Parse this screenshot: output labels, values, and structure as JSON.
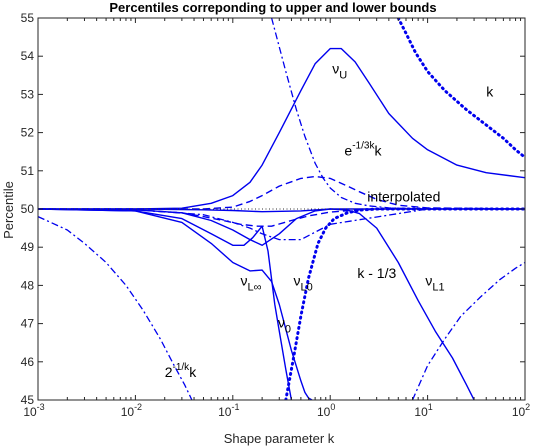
{
  "chart_data": {
    "type": "line",
    "title": "Percentiles correponding to upper and lower bounds",
    "xlabel": "Shape parameter k",
    "ylabel": "Percentile",
    "xscale": "log",
    "xlim": [
      0.001,
      100
    ],
    "ylim": [
      45,
      55
    ],
    "grid": false,
    "legend": "none",
    "color": "#0000ee",
    "x_ticks": [
      {
        "value": 0.001,
        "base": "10",
        "exp": "-3"
      },
      {
        "value": 0.01,
        "base": "10",
        "exp": "-2"
      },
      {
        "value": 0.1,
        "base": "10",
        "exp": "-1"
      },
      {
        "value": 1,
        "base": "10",
        "exp": "0"
      },
      {
        "value": 10,
        "base": "10",
        "exp": "1"
      },
      {
        "value": 100,
        "base": "10",
        "exp": "2"
      }
    ],
    "y_ticks": [
      45,
      46,
      47,
      48,
      49,
      50,
      51,
      52,
      53,
      54,
      55
    ],
    "series": [
      {
        "id": "nu-u",
        "style": "solid",
        "x": [
          0.001,
          0.01,
          0.03,
          0.06,
          0.1,
          0.15,
          0.2,
          0.3,
          0.5,
          0.7,
          1,
          1.3,
          1.8,
          2.5,
          4,
          7,
          10,
          20,
          40,
          100
        ],
        "y": [
          50,
          50,
          50.02,
          50.15,
          50.35,
          50.7,
          51.15,
          52,
          53.1,
          53.8,
          54.2,
          54.2,
          53.85,
          53.3,
          52.5,
          51.85,
          51.55,
          51.15,
          50.95,
          50.82
        ]
      },
      {
        "id": "nu-l-inf",
        "style": "solid",
        "x": [
          0.001,
          0.01,
          0.03,
          0.06,
          0.1,
          0.15,
          0.2,
          0.25,
          0.3,
          0.4,
          0.5,
          0.55,
          0.6,
          0.65
        ],
        "y": [
          50,
          49.95,
          49.65,
          49.1,
          48.6,
          48.38,
          48.4,
          48.1,
          47.5,
          46.3,
          45.5,
          45.2,
          45.05,
          45
        ]
      },
      {
        "id": "nu-0",
        "style": "solid",
        "x": [
          0.001,
          0.01,
          0.03,
          0.06,
          0.1,
          0.13,
          0.16,
          0.2,
          0.23,
          0.27,
          0.3,
          0.35,
          0.4
        ],
        "y": [
          50,
          49.95,
          49.75,
          49.35,
          49.05,
          49.05,
          49.25,
          49.55,
          48.9,
          47.5,
          46.8,
          45.8,
          45
        ]
      },
      {
        "id": "nu-l0",
        "style": "solid",
        "x": [
          0.001,
          0.01,
          0.03,
          0.06,
          0.1,
          0.15,
          0.2,
          0.3,
          0.45,
          0.7,
          1,
          1.5,
          2,
          3,
          5,
          10,
          100
        ],
        "y": [
          50,
          49.98,
          49.9,
          49.7,
          49.45,
          49.2,
          49.05,
          49.35,
          49.75,
          49.95,
          50,
          50,
          50,
          50,
          50,
          50,
          50
        ]
      },
      {
        "id": "nu-l1",
        "style": "solid",
        "x": [
          0.001,
          0.01,
          0.05,
          0.1,
          0.2,
          0.5,
          1,
          1.5,
          2,
          3,
          5,
          8,
          12,
          18,
          25,
          30
        ],
        "y": [
          50,
          50,
          49.98,
          49.96,
          49.93,
          49.95,
          50,
          49.97,
          49.88,
          49.5,
          48.6,
          47.6,
          46.8,
          46.1,
          45.4,
          45
        ]
      },
      {
        "id": "interpolated",
        "style": "dashed",
        "x": [
          0.001,
          0.01,
          0.03,
          0.05,
          0.1,
          0.15,
          0.2,
          0.3,
          0.5,
          0.7,
          1,
          1.5,
          2,
          3,
          5,
          10,
          100
        ],
        "y": [
          50,
          50,
          50,
          50,
          50.05,
          50.2,
          50.35,
          50.6,
          50.8,
          50.85,
          50.8,
          50.6,
          50.45,
          50.25,
          50.1,
          50.03,
          50
        ]
      },
      {
        "id": "interpolated-lower",
        "style": "dashed",
        "x": [
          0.001,
          0.01,
          0.03,
          0.05,
          0.08,
          0.12,
          0.18,
          0.25,
          0.4,
          0.6,
          1,
          2,
          5,
          10,
          100
        ],
        "y": [
          50,
          49.98,
          49.9,
          49.8,
          49.7,
          49.6,
          49.55,
          49.55,
          49.7,
          49.82,
          49.92,
          49.98,
          50,
          50,
          50
        ]
      },
      {
        "id": "exp-k",
        "style": "dashdot",
        "x": [
          0.25,
          0.35,
          0.45,
          0.55,
          0.7,
          0.85,
          1,
          1.3,
          1.8,
          2.5,
          4,
          7,
          10,
          100
        ],
        "y": [
          55,
          53.6,
          52.6,
          51.9,
          51.2,
          50.8,
          50.55,
          50.3,
          50.15,
          50.08,
          50.03,
          50.01,
          50,
          50
        ]
      },
      {
        "id": "exp-k-lower",
        "style": "dashdot",
        "x": [
          0.001,
          0.01,
          0.05,
          0.1,
          0.15,
          0.2,
          0.3,
          0.5,
          1,
          10,
          100
        ],
        "y": [
          50,
          49.98,
          49.85,
          49.65,
          49.5,
          49.35,
          49.2,
          49.2,
          49.6,
          50,
          50
        ]
      },
      {
        "id": "two-pow",
        "style": "dashdot",
        "x": [
          0.001,
          0.002,
          0.003,
          0.005,
          0.008,
          0.012,
          0.018,
          0.025,
          0.032,
          0.038
        ],
        "y": [
          49.8,
          49.45,
          49.1,
          48.6,
          48,
          47.35,
          46.6,
          45.9,
          45.4,
          45
        ]
      },
      {
        "id": "k-right-dashdot",
        "style": "dashdot",
        "x": [
          7,
          10,
          15,
          22,
          35,
          55,
          80,
          100
        ],
        "y": [
          45,
          45.9,
          46.6,
          47.2,
          47.7,
          48.15,
          48.45,
          48.6
        ]
      },
      {
        "id": "k-minus-third",
        "style": "dotted-thin",
        "x": [
          0.001,
          0.01,
          0.1,
          0.2,
          0.35,
          0.5,
          0.7,
          1,
          1.5,
          2,
          3,
          5,
          10,
          100
        ],
        "y": [
          50,
          50,
          50,
          50,
          50,
          50,
          50,
          50,
          50,
          50,
          50,
          50,
          50,
          50
        ]
      },
      {
        "id": "k-minus-third-dotted",
        "style": "dotted",
        "x": [
          0.35,
          0.42,
          0.5,
          0.6,
          0.75,
          0.9,
          1.1,
          1.5,
          2,
          3,
          5,
          10,
          100
        ],
        "y": [
          45,
          46.1,
          47.2,
          48.2,
          49.1,
          49.5,
          49.75,
          49.9,
          49.97,
          50,
          50,
          50,
          50
        ]
      },
      {
        "id": "k-upper-dotted",
        "style": "dotted",
        "x": [
          5,
          6,
          7.5,
          10,
          15,
          25,
          40,
          60,
          80,
          100
        ],
        "y": [
          55,
          54.6,
          54.1,
          53.6,
          53.1,
          52.6,
          52.2,
          51.85,
          51.55,
          51.35
        ]
      }
    ],
    "annotations": [
      {
        "sym": "ν",
        "sub": "U",
        "x": 1.05,
        "y": 53.55
      },
      {
        "sym": "k",
        "sub": "",
        "x": 40,
        "y": 52.95
      },
      {
        "sym": "e",
        "sup": "-1/3k",
        "tail": "k",
        "x": 1.4,
        "y": 51.4
      },
      {
        "sym": "interpolated",
        "sub": "",
        "x": 2.4,
        "y": 50.2
      },
      {
        "sym": "ν",
        "sub": "L∞",
        "x": 0.12,
        "y": 48.0
      },
      {
        "sym": "ν",
        "sub": "L0",
        "x": 0.42,
        "y": 48.0
      },
      {
        "sym": "k - 1/3",
        "sub": "",
        "x": 1.9,
        "y": 48.2
      },
      {
        "sym": "ν",
        "sub": "L1",
        "x": 9.5,
        "y": 48.0
      },
      {
        "sym": "ν",
        "sub": "0",
        "x": 0.29,
        "y": 46.9
      },
      {
        "sym": "2",
        "sup": "-1/k",
        "tail": "k",
        "x": 0.02,
        "y": 45.6
      }
    ]
  }
}
